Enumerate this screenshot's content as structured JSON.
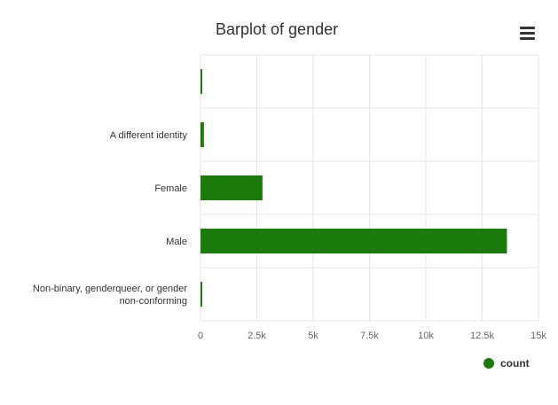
{
  "chart_data": {
    "type": "bar",
    "orientation": "horizontal",
    "title": "Barplot of gender",
    "categories": [
      "",
      "A different identity",
      "Female",
      "Male",
      "Non-binary, genderqueer, or gender non-conforming"
    ],
    "series": [
      {
        "name": "count",
        "values": [
          60,
          150,
          2750,
          13600,
          60
        ],
        "color": "#1a7a0a"
      }
    ],
    "xlim": [
      0,
      15000
    ],
    "x_ticks": [
      0,
      2500,
      5000,
      7500,
      10000,
      12500,
      15000
    ],
    "x_tick_labels": [
      "0",
      "2.5k",
      "5k",
      "7.5k",
      "10k",
      "12.5k",
      "15k"
    ],
    "grid": true,
    "legend": {
      "position": "bottom-right",
      "entries": [
        "count"
      ]
    }
  },
  "toolbar": {
    "menu_icon": "hamburger-menu-icon"
  }
}
